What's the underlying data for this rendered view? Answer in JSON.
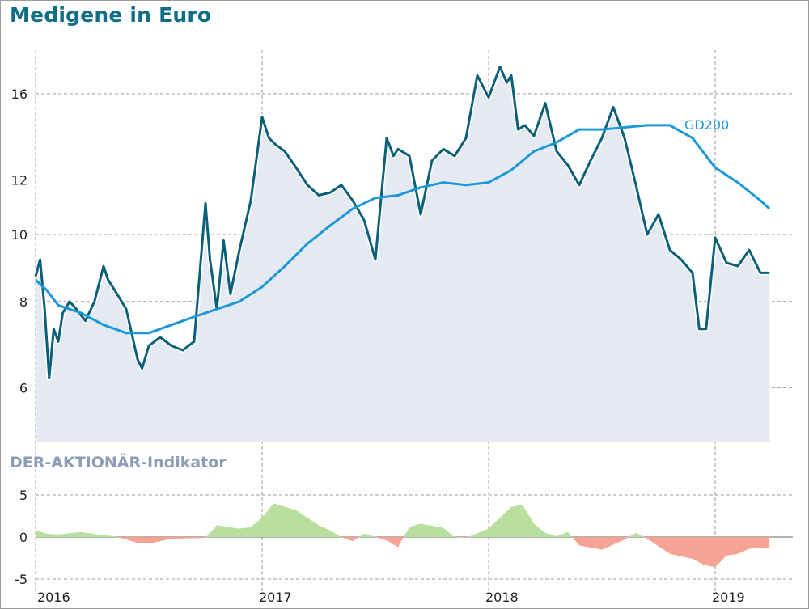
{
  "header": {
    "title": "Medigene in Euro",
    "indicator_title": "DER-AKTIONÄR-Indikator"
  },
  "colors": {
    "price_line": "#0b5f78",
    "price_area": "#e5eaf2",
    "gd200_line": "#1c98d8",
    "indicator_positive": "#b9df9f",
    "indicator_negative": "#f6a394",
    "grid": "#9a9a9a"
  },
  "chart_data": [
    {
      "type": "line",
      "title": "Medigene in Euro",
      "y_scale": "log",
      "ylim": [
        5.0,
        18.5
      ],
      "yticks": [
        6,
        8,
        10,
        12,
        16
      ],
      "x_range": [
        2016.0,
        2019.3
      ],
      "x_ticks": [
        2016,
        2017,
        2018,
        2019
      ],
      "x_tick_labels": [
        "2016",
        "2017",
        "2018",
        "2019"
      ],
      "grid": "dashed",
      "series": [
        {
          "name": "",
          "style": "line with shaded area",
          "x": [
            2016.0,
            2016.02,
            2016.04,
            2016.06,
            2016.08,
            2016.1,
            2016.12,
            2016.15,
            2016.18,
            2016.22,
            2016.26,
            2016.3,
            2016.32,
            2016.35,
            2016.4,
            2016.45,
            2016.47,
            2016.5,
            2016.55,
            2016.6,
            2016.65,
            2016.7,
            2016.75,
            2016.77,
            2016.8,
            2016.83,
            2016.86,
            2016.9,
            2016.95,
            2017.0,
            2017.03,
            2017.06,
            2017.1,
            2017.15,
            2017.2,
            2017.25,
            2017.3,
            2017.35,
            2017.4,
            2017.45,
            2017.5,
            2017.55,
            2017.58,
            2017.6,
            2017.65,
            2017.7,
            2017.75,
            2017.8,
            2017.85,
            2017.9,
            2017.95,
            2018.0,
            2018.05,
            2018.08,
            2018.1,
            2018.13,
            2018.16,
            2018.2,
            2018.25,
            2018.3,
            2018.35,
            2018.4,
            2018.45,
            2018.5,
            2018.55,
            2018.6,
            2018.65,
            2018.7,
            2018.75,
            2018.8,
            2018.85,
            2018.9,
            2018.93,
            2018.96,
            2019.0,
            2019.05,
            2019.1,
            2019.15,
            2019.2,
            2019.24
          ],
          "y": [
            8.7,
            9.2,
            7.8,
            6.2,
            7.3,
            7.0,
            7.7,
            8.0,
            7.8,
            7.5,
            8.0,
            9.0,
            8.6,
            8.3,
            7.8,
            6.6,
            6.4,
            6.9,
            7.1,
            6.9,
            6.8,
            7.0,
            11.1,
            9.2,
            7.8,
            9.8,
            8.2,
            9.5,
            11.2,
            14.8,
            13.8,
            13.5,
            13.2,
            12.5,
            11.8,
            11.4,
            11.5,
            11.8,
            11.2,
            10.5,
            9.2,
            13.8,
            13.0,
            13.3,
            13.0,
            10.7,
            12.8,
            13.3,
            13.0,
            13.8,
            17.0,
            15.8,
            17.5,
            16.6,
            17.0,
            14.2,
            14.4,
            13.9,
            15.5,
            13.2,
            12.6,
            11.8,
            12.8,
            13.8,
            15.3,
            13.8,
            11.8,
            10.0,
            10.7,
            9.5,
            9.2,
            8.8,
            7.3,
            7.3,
            9.9,
            9.1,
            9.0,
            9.5,
            8.8,
            8.8
          ]
        },
        {
          "name": "GD200",
          "x": [
            2016.0,
            2016.05,
            2016.1,
            2016.2,
            2016.3,
            2016.4,
            2016.5,
            2016.6,
            2016.7,
            2016.8,
            2016.9,
            2017.0,
            2017.1,
            2017.2,
            2017.3,
            2017.4,
            2017.5,
            2017.6,
            2017.7,
            2017.8,
            2017.9,
            2018.0,
            2018.1,
            2018.2,
            2018.3,
            2018.4,
            2018.5,
            2018.6,
            2018.7,
            2018.8,
            2018.9,
            2019.0,
            2019.1,
            2019.2,
            2019.24
          ],
          "y": [
            8.6,
            8.3,
            7.9,
            7.7,
            7.4,
            7.2,
            7.2,
            7.4,
            7.6,
            7.8,
            8.0,
            8.4,
            9.0,
            9.7,
            10.3,
            10.9,
            11.3,
            11.4,
            11.7,
            11.9,
            11.8,
            11.9,
            12.4,
            13.2,
            13.6,
            14.2,
            14.2,
            14.3,
            14.4,
            14.4,
            13.8,
            12.5,
            11.9,
            11.2,
            10.9
          ]
        }
      ]
    },
    {
      "type": "area",
      "title": "DER-AKTIONÄR-Indikator",
      "ylim": [
        -5,
        5
      ],
      "yticks": [
        -5,
        0,
        5
      ],
      "x_range": [
        2016.0,
        2019.3
      ],
      "series": [
        {
          "name": "",
          "x": [
            2016.0,
            2016.05,
            2016.1,
            2016.2,
            2016.3,
            2016.35,
            2016.45,
            2016.5,
            2016.6,
            2016.75,
            2016.8,
            2016.9,
            2016.95,
            2017.0,
            2017.05,
            2017.15,
            2017.25,
            2017.3,
            2017.35,
            2017.4,
            2017.45,
            2017.55,
            2017.6,
            2017.65,
            2017.7,
            2017.8,
            2017.85,
            2017.9,
            2018.0,
            2018.1,
            2018.15,
            2018.2,
            2018.25,
            2018.3,
            2018.35,
            2018.4,
            2018.5,
            2018.6,
            2018.65,
            2018.7,
            2018.8,
            2018.9,
            2018.95,
            2019.0,
            2019.05,
            2019.1,
            2019.15,
            2019.2,
            2019.24
          ],
          "values": [
            0.8,
            0.4,
            0.3,
            0.6,
            0.2,
            0.1,
            -0.7,
            -0.8,
            -0.2,
            -0.1,
            1.4,
            1.0,
            1.2,
            2.3,
            4.0,
            3.2,
            1.4,
            0.8,
            0.0,
            -0.5,
            0.4,
            -0.4,
            -1.2,
            1.2,
            1.6,
            1.1,
            0.0,
            -0.1,
            1.0,
            3.6,
            3.8,
            1.6,
            0.5,
            0.1,
            0.6,
            -1.0,
            -1.5,
            -0.3,
            0.5,
            -0.2,
            -2.0,
            -2.6,
            -3.3,
            -3.6,
            -2.2,
            -2.0,
            -1.4,
            -1.3,
            -1.2
          ]
        }
      ]
    }
  ],
  "labels": {
    "gd200": "GD200"
  }
}
